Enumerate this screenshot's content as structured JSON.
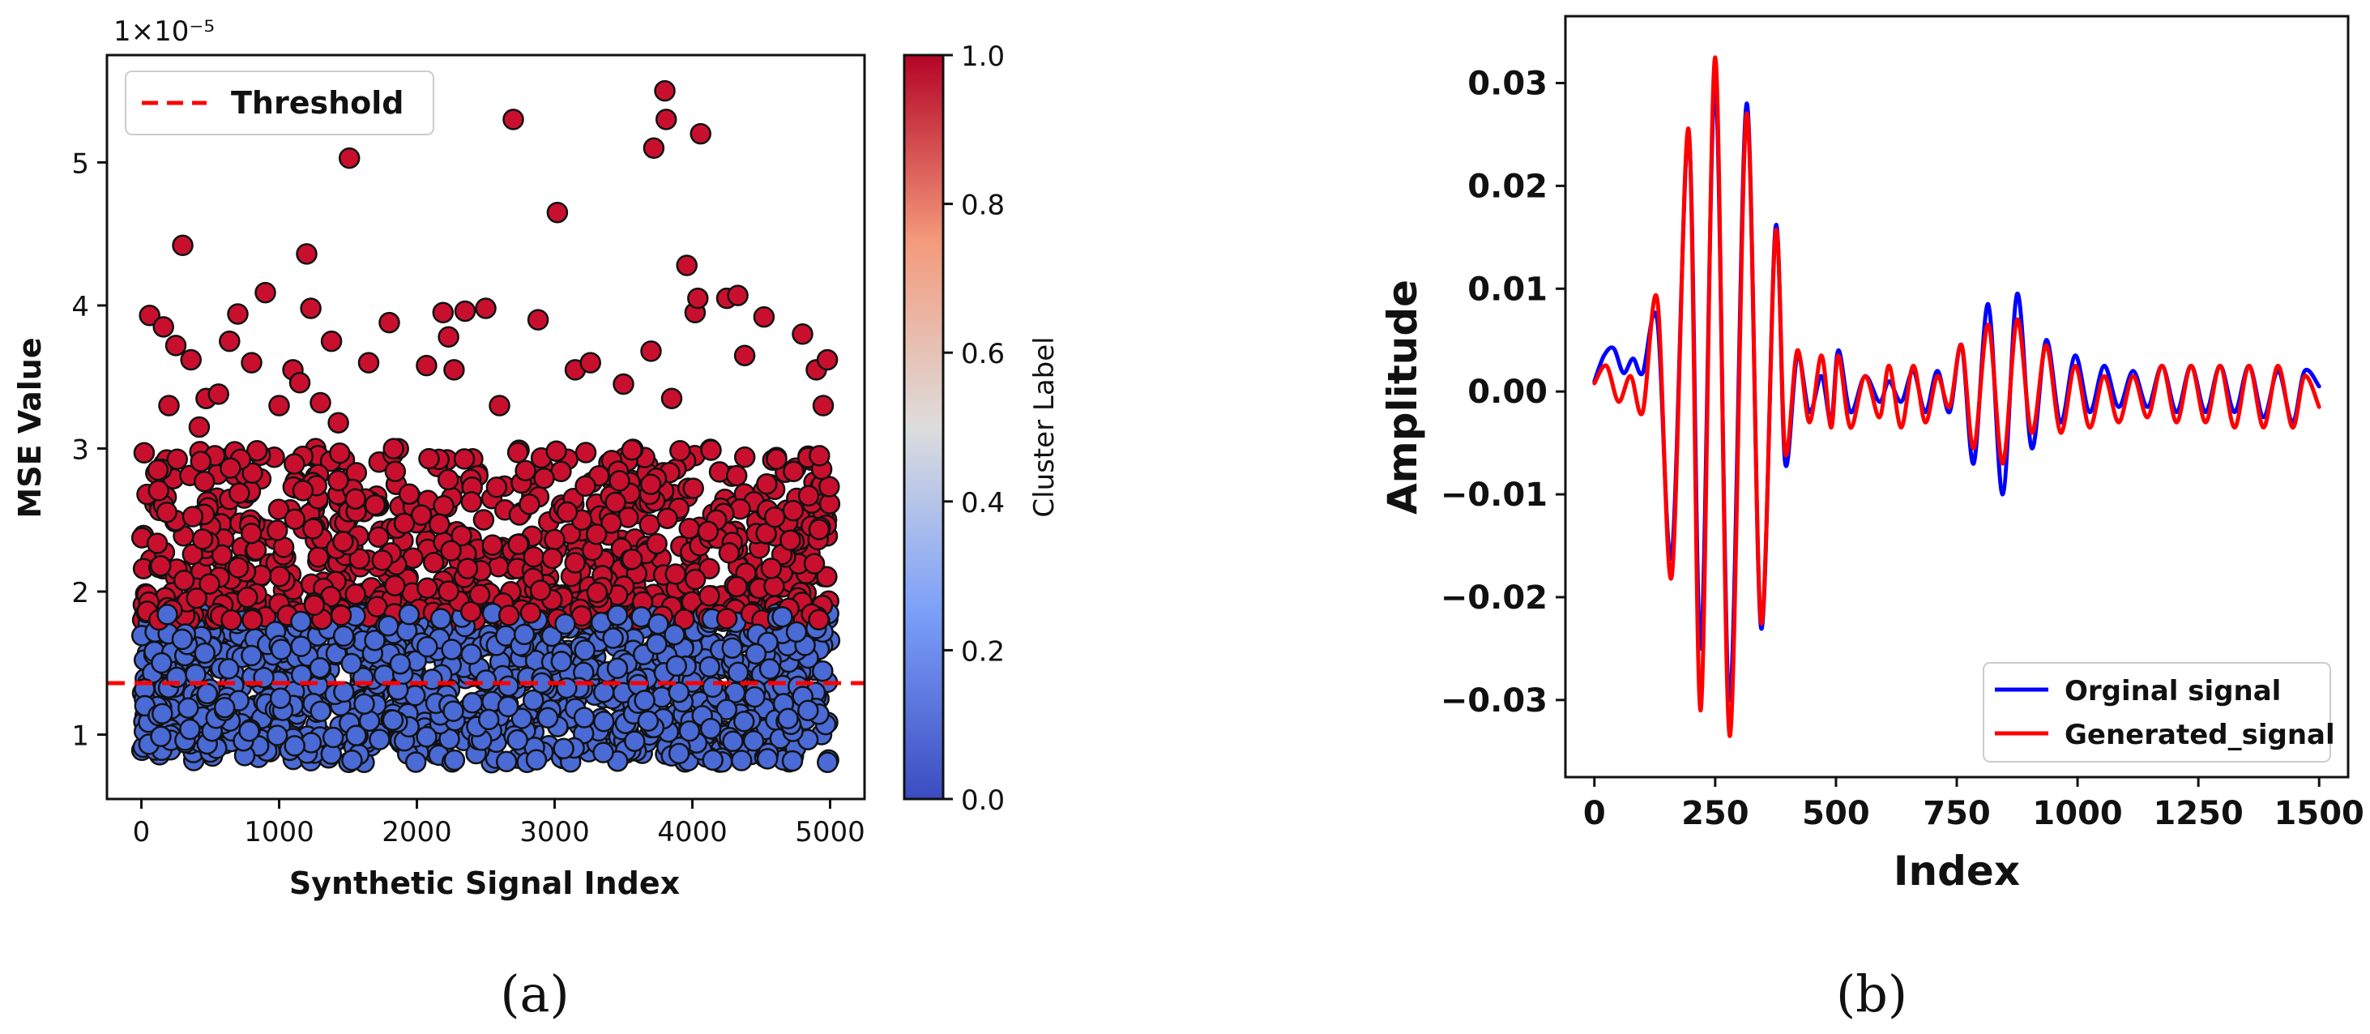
{
  "chart_data": [
    {
      "type": "scatter",
      "panel_label": "(a)",
      "xlabel": "Synthetic Signal Index",
      "ylabel": "MSE Value",
      "y_scale_label": "1×10⁻⁵",
      "xlim": [
        -250,
        5250
      ],
      "ylim": [
        0.55,
        5.75
      ],
      "xticks": [
        0,
        1000,
        2000,
        3000,
        4000,
        5000
      ],
      "xtick_labels": [
        "0",
        "1000",
        "2000",
        "3000",
        "4000",
        "5000"
      ],
      "yticks": [
        1,
        2,
        3,
        4,
        5
      ],
      "ytick_labels": [
        "1",
        "2",
        "3",
        "4",
        "5"
      ],
      "threshold": 1.36,
      "legend": {
        "label": "Threshold",
        "placement": "top-left"
      },
      "colorbar": {
        "label": "Cluster Label",
        "ticks": [
          0.0,
          0.2,
          0.4,
          0.6,
          0.8,
          1.0
        ],
        "tick_labels": [
          "0.0",
          "0.2",
          "0.4",
          "0.6",
          "0.8",
          "1.0"
        ],
        "low_color": "#3b4cc0",
        "mid_color": "#dddddd",
        "high_color": "#b40426"
      },
      "clusters": [
        {
          "label": 0,
          "color": "#4a6ad6",
          "y_range": [
            0.8,
            1.85
          ]
        },
        {
          "label": 1,
          "color": "#c8102e",
          "y_range": [
            1.8,
            3.0
          ]
        }
      ],
      "n_points": 5000,
      "outliers": [
        [
          20,
          2.97
        ],
        [
          60,
          3.93
        ],
        [
          120,
          2.85
        ],
        [
          160,
          3.85
        ],
        [
          200,
          3.3
        ],
        [
          250,
          3.72
        ],
        [
          300,
          4.42
        ],
        [
          360,
          3.62
        ],
        [
          420,
          3.15
        ],
        [
          470,
          3.35
        ],
        [
          560,
          3.38
        ],
        [
          640,
          3.75
        ],
        [
          700,
          3.94
        ],
        [
          800,
          3.6
        ],
        [
          900,
          4.09
        ],
        [
          1000,
          3.3
        ],
        [
          1100,
          3.55
        ],
        [
          1150,
          3.46
        ],
        [
          1200,
          4.36
        ],
        [
          1230,
          3.98
        ],
        [
          1300,
          3.32
        ],
        [
          1380,
          3.75
        ],
        [
          1430,
          3.18
        ],
        [
          1510,
          5.03
        ],
        [
          1650,
          3.6
        ],
        [
          1800,
          3.88
        ],
        [
          2070,
          3.58
        ],
        [
          2190,
          3.95
        ],
        [
          2230,
          3.78
        ],
        [
          2270,
          3.55
        ],
        [
          2350,
          3.96
        ],
        [
          2500,
          3.98
        ],
        [
          2600,
          3.3
        ],
        [
          2700,
          5.3
        ],
        [
          2880,
          3.9
        ],
        [
          3020,
          4.65
        ],
        [
          3150,
          3.55
        ],
        [
          3260,
          3.6
        ],
        [
          3500,
          3.45
        ],
        [
          3700,
          3.68
        ],
        [
          3720,
          5.1
        ],
        [
          3800,
          5.5
        ],
        [
          3810,
          5.3
        ],
        [
          3850,
          3.35
        ],
        [
          3960,
          4.28
        ],
        [
          4020,
          3.95
        ],
        [
          4040,
          4.05
        ],
        [
          4060,
          5.2
        ],
        [
          4250,
          4.05
        ],
        [
          4330,
          4.07
        ],
        [
          4380,
          3.65
        ],
        [
          4520,
          3.92
        ],
        [
          4800,
          3.8
        ],
        [
          4900,
          3.55
        ],
        [
          4950,
          3.3
        ],
        [
          4980,
          3.62
        ]
      ]
    },
    {
      "type": "line",
      "panel_label": "(b)",
      "xlabel": "Index",
      "ylabel": "Amplitude",
      "xlim": [
        -60,
        1560
      ],
      "ylim": [
        -0.0375,
        0.0365
      ],
      "xticks": [
        0,
        250,
        500,
        750,
        1000,
        1250,
        1500
      ],
      "xtick_labels": [
        "0",
        "250",
        "500",
        "750",
        "1000",
        "1250",
        "1500"
      ],
      "yticks": [
        -0.03,
        -0.02,
        -0.01,
        0.0,
        0.01,
        0.02,
        0.03
      ],
      "ytick_labels": [
        "−0.03",
        "−0.02",
        "−0.01",
        "0.00",
        "0.01",
        "0.02",
        "0.03"
      ],
      "legend_placement": "lower-right",
      "series": [
        {
          "name": "Orginal signal",
          "color": "#0000ff",
          "points": [
            [
              0,
              0.001
            ],
            [
              20,
              0.0035
            ],
            [
              40,
              0.0042
            ],
            [
              60,
              0.0018
            ],
            [
              80,
              0.0032
            ],
            [
              100,
              0.0018
            ],
            [
              130,
              0.007
            ],
            [
              160,
              -0.016
            ],
            [
              195,
              0.025
            ],
            [
              220,
              -0.025
            ],
            [
              250,
              0.03
            ],
            [
              280,
              -0.03
            ],
            [
              315,
              0.028
            ],
            [
              345,
              -0.023
            ],
            [
              375,
              0.016
            ],
            [
              395,
              -0.007
            ],
            [
              420,
              0.0035
            ],
            [
              445,
              -0.002
            ],
            [
              470,
              0.0015
            ],
            [
              490,
              -0.003
            ],
            [
              505,
              0.004
            ],
            [
              530,
              -0.002
            ],
            [
              560,
              0.0015
            ],
            [
              590,
              -0.001
            ],
            [
              610,
              0.001
            ],
            [
              635,
              -0.001
            ],
            [
              660,
              0.002
            ],
            [
              685,
              -0.002
            ],
            [
              710,
              0.002
            ],
            [
              735,
              -0.002
            ],
            [
              760,
              0.0045
            ],
            [
              785,
              -0.007
            ],
            [
              815,
              0.0085
            ],
            [
              845,
              -0.01
            ],
            [
              875,
              0.0095
            ],
            [
              905,
              -0.0055
            ],
            [
              935,
              0.005
            ],
            [
              965,
              -0.003
            ],
            [
              995,
              0.0035
            ],
            [
              1025,
              -0.002
            ],
            [
              1055,
              0.0025
            ],
            [
              1085,
              -0.0015
            ],
            [
              1115,
              0.002
            ],
            [
              1145,
              -0.0015
            ],
            [
              1175,
              0.0025
            ],
            [
              1205,
              -0.002
            ],
            [
              1235,
              0.0025
            ],
            [
              1265,
              -0.002
            ],
            [
              1295,
              0.0025
            ],
            [
              1325,
              -0.002
            ],
            [
              1355,
              0.0025
            ],
            [
              1385,
              -0.0025
            ],
            [
              1415,
              0.002
            ],
            [
              1445,
              -0.003
            ],
            [
              1470,
              0.002
            ],
            [
              1500,
              0.0005
            ]
          ]
        },
        {
          "name": "Generated_signal",
          "color": "#ff0000",
          "points": [
            [
              0,
              0.0008
            ],
            [
              25,
              0.0025
            ],
            [
              50,
              -0.001
            ],
            [
              75,
              0.0015
            ],
            [
              100,
              -0.002
            ],
            [
              130,
              0.009
            ],
            [
              160,
              -0.018
            ],
            [
              195,
              0.0255
            ],
            [
              220,
              -0.031
            ],
            [
              250,
              0.0325
            ],
            [
              280,
              -0.0335
            ],
            [
              315,
              0.027
            ],
            [
              345,
              -0.0225
            ],
            [
              375,
              0.0155
            ],
            [
              395,
              -0.006
            ],
            [
              420,
              0.004
            ],
            [
              445,
              -0.003
            ],
            [
              470,
              0.0035
            ],
            [
              490,
              -0.0035
            ],
            [
              505,
              0.0035
            ],
            [
              530,
              -0.0035
            ],
            [
              560,
              0.0015
            ],
            [
              590,
              -0.0025
            ],
            [
              610,
              0.0025
            ],
            [
              635,
              -0.0035
            ],
            [
              660,
              0.0025
            ],
            [
              685,
              -0.003
            ],
            [
              710,
              0.0015
            ],
            [
              735,
              -0.0015
            ],
            [
              760,
              0.0045
            ],
            [
              785,
              -0.0055
            ],
            [
              815,
              0.0065
            ],
            [
              845,
              -0.007
            ],
            [
              875,
              0.007
            ],
            [
              905,
              -0.004
            ],
            [
              935,
              0.0045
            ],
            [
              965,
              -0.004
            ],
            [
              995,
              0.0025
            ],
            [
              1025,
              -0.0035
            ],
            [
              1055,
              0.0015
            ],
            [
              1085,
              -0.003
            ],
            [
              1115,
              0.0015
            ],
            [
              1145,
              -0.0025
            ],
            [
              1175,
              0.0025
            ],
            [
              1205,
              -0.003
            ],
            [
              1235,
              0.0025
            ],
            [
              1265,
              -0.003
            ],
            [
              1295,
              0.0025
            ],
            [
              1325,
              -0.0035
            ],
            [
              1355,
              0.0025
            ],
            [
              1385,
              -0.0035
            ],
            [
              1415,
              0.0025
            ],
            [
              1445,
              -0.0035
            ],
            [
              1470,
              0.0015
            ],
            [
              1500,
              -0.0015
            ]
          ]
        }
      ]
    }
  ]
}
